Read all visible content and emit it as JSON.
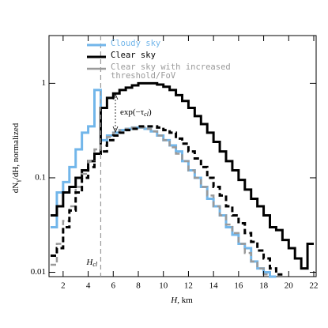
{
  "chart_data": {
    "type": "histogram",
    "xlabel": {
      "main": "H",
      "rest": ", km"
    },
    "ylabel": {
      "main": "dN",
      "sub": "γ",
      "rest": "/dH, normalized"
    },
    "bins": [
      1,
      1.5,
      2,
      2.5,
      3,
      3.5,
      4,
      4.5,
      5,
      5.5,
      6,
      6.5,
      7,
      7.5,
      8,
      8.5,
      9,
      9.5,
      10,
      10.5,
      11,
      11.5,
      12,
      12.5,
      13,
      13.5,
      14,
      14.5,
      15,
      15.5,
      16,
      16.5,
      17,
      17.5,
      18,
      18.5,
      19,
      19.5,
      20,
      20.5,
      21,
      21.5,
      22
    ],
    "series": [
      {
        "name": "Cloudy sky",
        "color": "#72b6ea",
        "dash": false,
        "width": 3,
        "values": [
          0.03,
          0.07,
          0.09,
          0.13,
          0.2,
          0.3,
          0.35,
          0.85,
          0.25,
          0.28,
          0.3,
          0.32,
          0.33,
          0.34,
          0.34,
          0.33,
          0.31,
          0.28,
          0.25,
          0.22,
          0.19,
          0.15,
          0.12,
          0.1,
          0.08,
          0.06,
          0.05,
          0.04,
          0.03,
          0.025,
          0.02,
          0.018,
          0.013,
          0.011,
          0.01,
          0.009,
          null,
          null,
          null,
          null,
          null,
          null
        ]
      },
      {
        "name": "Clear sky",
        "color": "#000000",
        "dash": false,
        "width": 3,
        "values": [
          0.04,
          0.05,
          0.07,
          0.08,
          0.1,
          0.12,
          0.15,
          0.18,
          0.55,
          0.7,
          0.78,
          0.85,
          0.9,
          0.95,
          1.0,
          1.0,
          1.0,
          0.97,
          0.92,
          0.85,
          0.75,
          0.65,
          0.55,
          0.45,
          0.37,
          0.3,
          0.24,
          0.19,
          0.15,
          0.12,
          0.095,
          0.075,
          0.06,
          0.05,
          0.04,
          0.03,
          0.028,
          0.022,
          0.018,
          0.014,
          0.011,
          0.02
        ]
      },
      {
        "name": "Clear sky with increased threshold/FoV",
        "color": "#9a9a9a",
        "dash": true,
        "width": 2.5,
        "values": [
          0.012,
          0.02,
          0.035,
          0.05,
          0.08,
          0.11,
          0.15,
          0.2,
          0.22,
          0.27,
          0.3,
          0.32,
          0.33,
          0.34,
          0.34,
          0.33,
          0.31,
          0.28,
          0.25,
          0.21,
          0.18,
          0.15,
          0.12,
          0.1,
          0.08,
          0.065,
          0.05,
          0.04,
          0.032,
          0.026,
          0.02,
          0.016,
          0.013,
          0.011,
          0.0095,
          null,
          null,
          null,
          null,
          null,
          null,
          null
        ]
      },
      {
        "color": "#000000",
        "dash": true,
        "width": 3,
        "values": [
          0.015,
          0.018,
          0.03,
          0.045,
          0.07,
          0.1,
          0.13,
          0.18,
          0.19,
          0.25,
          0.28,
          0.3,
          0.32,
          0.33,
          0.35,
          0.35,
          0.35,
          0.34,
          0.32,
          0.3,
          0.26,
          0.23,
          0.19,
          0.16,
          0.13,
          0.1,
          0.08,
          0.065,
          0.05,
          0.04,
          0.033,
          0.026,
          0.021,
          0.017,
          0.014,
          0.011,
          0.0095,
          null,
          null,
          null,
          null,
          null
        ]
      }
    ],
    "xlim": [
      1,
      22
    ],
    "ylim": [
      0.009,
      3.2
    ],
    "log_y": true,
    "xticks": [
      2,
      4,
      6,
      8,
      10,
      12,
      14,
      16,
      18,
      20,
      22
    ],
    "yticks": [
      0.01,
      0.1,
      1
    ],
    "vline": {
      "x": 5,
      "label": "H",
      "label_sub": "cl"
    },
    "annotation": {
      "text": "exp(−τ",
      "sub": "cl",
      "end": ")"
    },
    "legend": "top-left"
  }
}
